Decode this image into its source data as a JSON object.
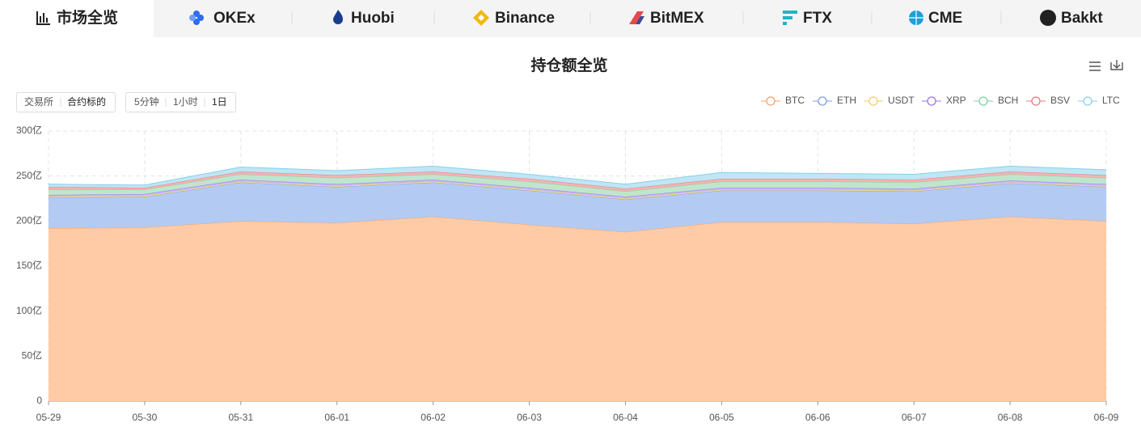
{
  "tabs": [
    "市场全览",
    "OKEx",
    "Huobi",
    "Binance",
    "BitMEX",
    "FTX",
    "CME",
    "Bakkt"
  ],
  "filters": {
    "scope": [
      "交易所",
      "合约标的"
    ],
    "interval": [
      "5分钟",
      "1小时",
      "1日"
    ]
  },
  "chart_data": {
    "type": "stacked-area",
    "title": "持仓额全览",
    "x": [
      "05-29",
      "05-30",
      "05-31",
      "06-01",
      "06-02",
      "06-03",
      "06-04",
      "06-05",
      "06-06",
      "06-07",
      "06-08",
      "06-09"
    ],
    "series": [
      {
        "name": "BTC",
        "color": "#f5a26a",
        "fill": "#fecba6",
        "values": [
          192,
          193,
          200,
          198,
          205,
          196,
          188,
          199,
          199,
          197,
          205,
          200
        ]
      },
      {
        "name": "ETH",
        "color": "#7d9fe0",
        "fill": "#b3cbf2",
        "values": [
          34,
          34,
          43,
          40,
          38,
          38,
          36,
          35,
          35,
          36,
          37,
          38
        ]
      },
      {
        "name": "USDT",
        "color": "#f3cf62",
        "fill": "#f8e2a0",
        "values": [
          1,
          1,
          1,
          1,
          1,
          1,
          1,
          1,
          1,
          1,
          1,
          1
        ]
      },
      {
        "name": "XRP",
        "color": "#9a77ea",
        "fill": "#c9b6f4",
        "values": [
          2,
          2,
          2,
          2,
          2,
          2,
          2,
          2,
          2,
          2,
          2,
          2
        ]
      },
      {
        "name": "BCH",
        "color": "#7fd0a0",
        "fill": "#bfe6cd",
        "values": [
          6,
          5,
          6,
          7,
          6,
          7,
          6,
          7,
          7,
          7,
          7,
          7
        ]
      },
      {
        "name": "BSV",
        "color": "#ec7878",
        "fill": "#f4b3b3",
        "values": [
          3,
          2,
          3,
          3,
          3,
          3,
          3,
          3,
          3,
          3,
          3,
          3
        ]
      },
      {
        "name": "LTC",
        "color": "#86d1ec",
        "fill": "#bfe6f4",
        "values": [
          3,
          3,
          5,
          5,
          6,
          5,
          5,
          7,
          6,
          6,
          6,
          6
        ]
      }
    ],
    "ylim": [
      0,
      300
    ],
    "yticks": [
      0,
      {
        "value": 50,
        "label": "50亿"
      },
      {
        "value": 100,
        "label": "100亿"
      },
      {
        "value": 150,
        "label": "150亿"
      },
      {
        "value": 200,
        "label": "200亿"
      },
      {
        "value": 250,
        "label": "250亿"
      },
      {
        "value": 300,
        "label": "300亿"
      }
    ],
    "grid": true,
    "legend": "top-right"
  }
}
